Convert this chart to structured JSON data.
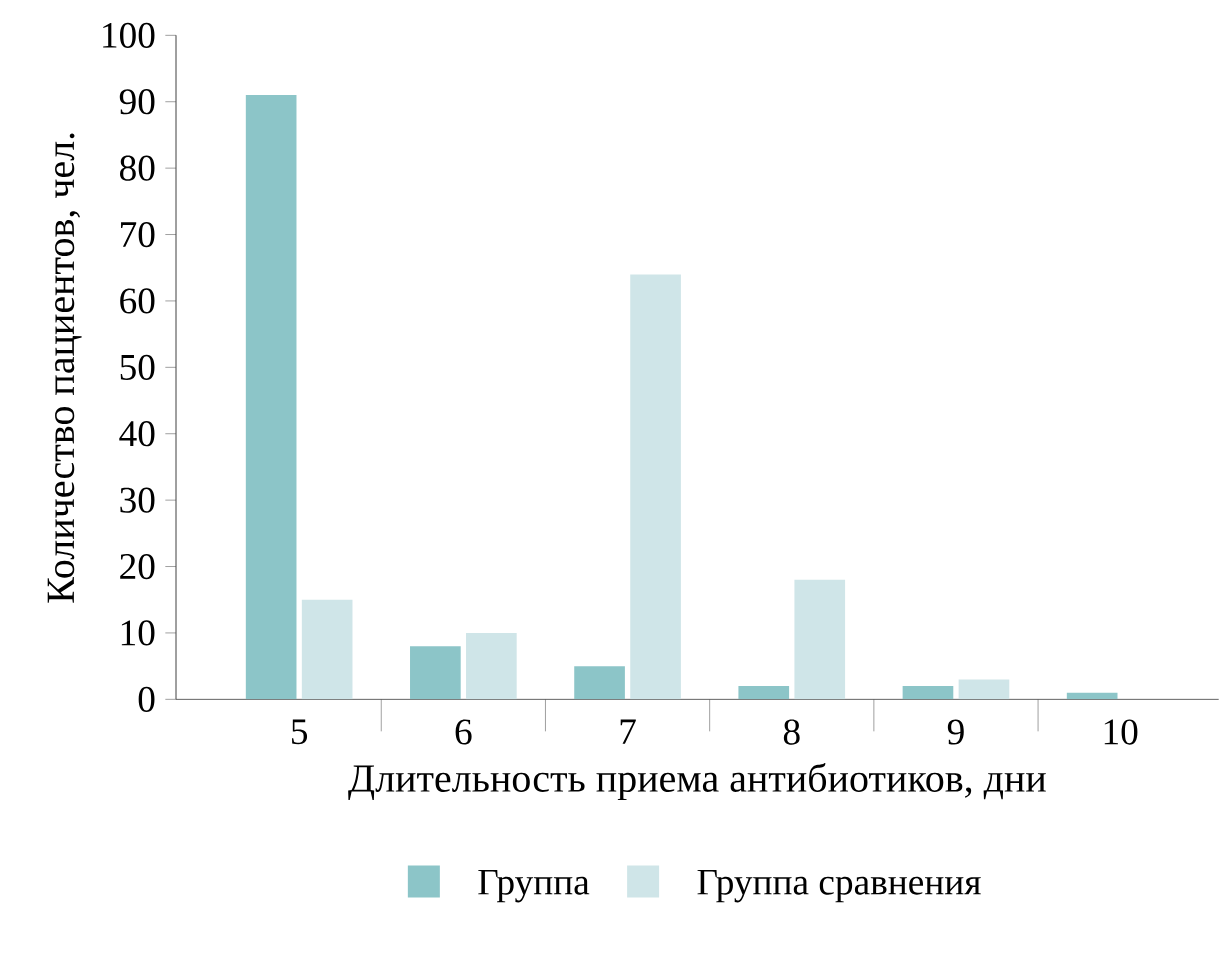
{
  "chart_data": {
    "type": "bar",
    "xlabel": "Длительность приема антибиотиков, дни",
    "ylabel": "Количество пациентов, чел.",
    "categories": [
      "5",
      "6",
      "7",
      "8",
      "9",
      "10"
    ],
    "series": [
      {
        "name": "Группа",
        "color": "#8cc5c8",
        "values": [
          91,
          8,
          5,
          2,
          2,
          1
        ]
      },
      {
        "name": "Группа сравнения",
        "color": "#cfe5e8",
        "values": [
          15,
          10,
          64,
          18,
          3,
          null
        ]
      }
    ],
    "ylim": [
      0,
      100
    ],
    "yticks": [
      0,
      10,
      20,
      30,
      40,
      50,
      60,
      70,
      80,
      90,
      100
    ],
    "legend": "bottom"
  }
}
